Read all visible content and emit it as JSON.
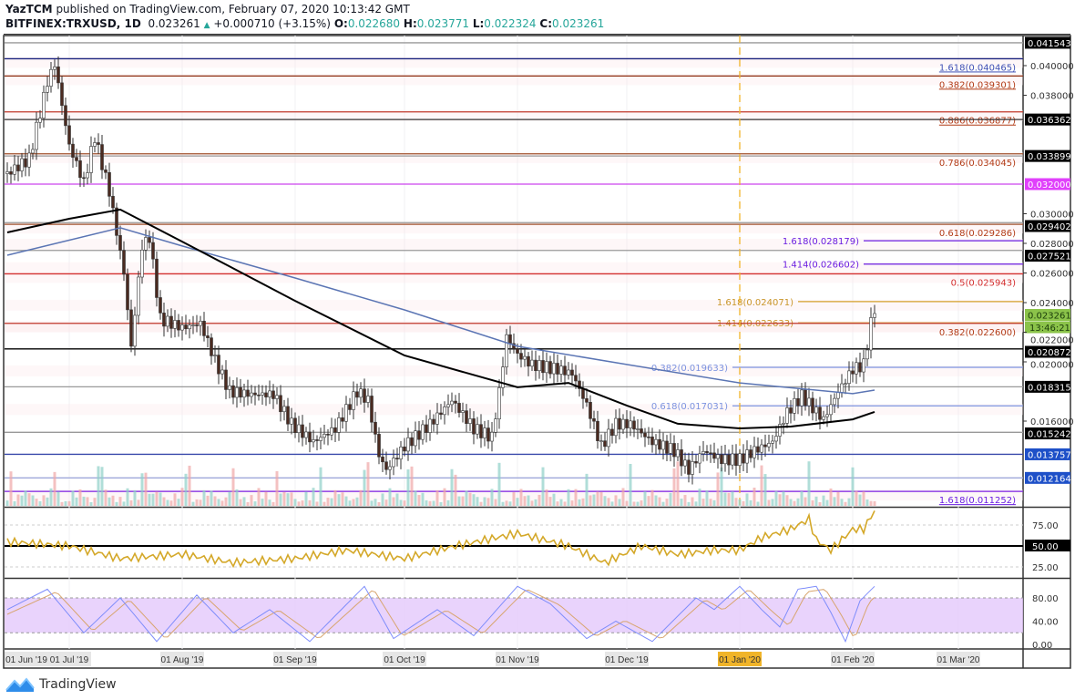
{
  "header": {
    "author": "YazTCM",
    "published": "published on TradingView.com, February 07, 2020 10:13:42 GMT",
    "symbol": "BITFINEX:TRXUSD, 1D",
    "last": "0.023261",
    "change": "+0.000710 (+3.15%)",
    "o_label": "O:",
    "o": "0.022680",
    "h_label": "H:",
    "h": "0.023771",
    "l_label": "L:",
    "l": "0.022324",
    "c_label": "C:",
    "c": "0.023261"
  },
  "footer": {
    "brand": "TradingView"
  },
  "chart_data": {
    "type": "candlestick",
    "colors": {
      "up": "#26a69a",
      "down": "#4a2a20",
      "rsi": "#d4a829",
      "stoch_k": "#7e8dfb",
      "stoch_d": "#d8a56e",
      "ma_black": "#000000",
      "ma_blue": "#5b75b4",
      "stoch_band": "#e3c8fb"
    },
    "price_axis_ticks": [
      "0.040000",
      "0.038000",
      "0.030000",
      "0.028000",
      "0.026000",
      "0.024000",
      "0.022000",
      "0.020000",
      "0.016000"
    ],
    "price_tags": [
      {
        "value": 0.041543,
        "text": "0.041543",
        "bg": "#000000"
      },
      {
        "value": 0.036362,
        "text": "0.036362",
        "bg": "#000000"
      },
      {
        "value": 0.033899,
        "text": "0.033899",
        "bg": "#000000"
      },
      {
        "value": 0.032,
        "text": "0.032000",
        "bg": "#e040fb"
      },
      {
        "value": 0.029402,
        "text": "0.029402",
        "bg": "#000000"
      },
      {
        "value": 0.027521,
        "text": "0.027521",
        "bg": "#000000"
      },
      {
        "value": 0.023261,
        "text": "0.023261",
        "bg": "#8bc34a"
      },
      {
        "value": 0.020872,
        "text": "0.020872",
        "bg": "#000000"
      },
      {
        "value": 0.018315,
        "text": "0.018315",
        "bg": "#000000"
      },
      {
        "value": 0.015242,
        "text": "0.015242",
        "bg": "#000000"
      },
      {
        "value": 0.013757,
        "text": "0.013757",
        "bg": "#1e50c8"
      },
      {
        "value": 0.012164,
        "text": "0.012164",
        "bg": "#1e50c8"
      }
    ],
    "countdown": "13:46:21",
    "levels": [
      {
        "value": 0.041543,
        "color": "#999999",
        "label": ""
      },
      {
        "value": 0.040465,
        "color": "#1a237e",
        "label": "1.618(0.040465)",
        "label_color": "#3f51b5"
      },
      {
        "value": 0.039301,
        "color": "#8b2e10",
        "label": "0.382(0.039301)",
        "label_color": "#b23c17"
      },
      {
        "value": 0.036877,
        "color": "#c0392b",
        "label": "0.886(0.036877)",
        "label_color": "#b23c17"
      },
      {
        "value": 0.036362,
        "color": "#333333",
        "label": ""
      },
      {
        "value": 0.034045,
        "color": "#a0522d",
        "label": "0.786(0.034045)",
        "label_color": "#b23c17"
      },
      {
        "value": 0.033899,
        "color": "#999999",
        "label": ""
      },
      {
        "value": 0.032,
        "color": "#cc44ee",
        "label": ""
      },
      {
        "value": 0.029402,
        "color": "#999999",
        "label": ""
      },
      {
        "value": 0.029286,
        "color": "#a0522d",
        "label": "0.618(0.029286)",
        "label_color": "#b23c17"
      },
      {
        "value": 0.028179,
        "color": "#6a1de0",
        "label": "1.618(0.028179)",
        "label_color": "#6a1de0",
        "start_date": "2020-02-04"
      },
      {
        "value": 0.027521,
        "color": "#999999",
        "label": ""
      },
      {
        "value": 0.026602,
        "color": "#6a1de0",
        "label": "1.414(0.026602)",
        "label_color": "#6a1de0",
        "start_date": "2020-02-04"
      },
      {
        "value": 0.025943,
        "color": "#d32f2f",
        "label": "0.5(0.025943)",
        "label_color": "#d32f2f"
      },
      {
        "value": 0.024071,
        "color": "#d4a02a",
        "label": "1.618(0.024071)",
        "label_color": "#c9962a",
        "start_date": "2020-01-17"
      },
      {
        "value": 0.022633,
        "color": "#d4a02a",
        "label": "1.414(0.022633)",
        "label_color": "#c9962a",
        "start_date": "2020-01-17"
      },
      {
        "value": 0.0226,
        "color": "#c0392b",
        "label": "0.382(0.022600)",
        "label_color": "#b23c17"
      },
      {
        "value": 0.020872,
        "color": "#000000",
        "label": ""
      },
      {
        "value": 0.019633,
        "color": "#7b93e0",
        "label": "0.382(0.019633)",
        "label_color": "#7b93e0",
        "start_date": "2019-12-30"
      },
      {
        "value": 0.018315,
        "color": "#999999",
        "label": ""
      },
      {
        "value": 0.017031,
        "color": "#7b93e0",
        "label": "0.618(0.017031)",
        "label_color": "#7b93e0",
        "start_date": "2019-12-30"
      },
      {
        "value": 0.015242,
        "color": "#999999",
        "label": ""
      },
      {
        "value": 0.013757,
        "color": "#3949ab",
        "label": ""
      },
      {
        "value": 0.012164,
        "color": "#9fa8da",
        "label": ""
      },
      {
        "value": 0.011252,
        "color": "#7b1fe0",
        "label": "1.618(0.011252)",
        "label_color": "#6a1de0"
      }
    ],
    "marker_date": "2020-01-01",
    "close": [
      [
        "2019-06-14",
        0.0327
      ],
      [
        "2019-06-20",
        0.0337
      ],
      [
        "2019-06-25",
        0.0389
      ],
      [
        "2019-06-27",
        0.0401
      ],
      [
        "2019-07-01",
        0.0346
      ],
      [
        "2019-07-05",
        0.0321
      ],
      [
        "2019-07-08",
        0.0352
      ],
      [
        "2019-07-12",
        0.0315
      ],
      [
        "2019-07-16",
        0.026
      ],
      [
        "2019-07-18",
        0.021
      ],
      [
        "2019-07-21",
        0.0278
      ],
      [
        "2019-07-23",
        0.0284
      ],
      [
        "2019-07-26",
        0.0229
      ],
      [
        "2019-08-01",
        0.0223
      ],
      [
        "2019-08-06",
        0.0226
      ],
      [
        "2019-08-10",
        0.0201
      ],
      [
        "2019-08-14",
        0.018
      ],
      [
        "2019-08-20",
        0.0178
      ],
      [
        "2019-08-26",
        0.0178
      ],
      [
        "2019-08-31",
        0.0158
      ],
      [
        "2019-09-06",
        0.0146
      ],
      [
        "2019-09-12",
        0.0155
      ],
      [
        "2019-09-18",
        0.018
      ],
      [
        "2019-09-21",
        0.0174
      ],
      [
        "2019-09-24",
        0.0137
      ],
      [
        "2019-09-26",
        0.0127
      ],
      [
        "2019-10-01",
        0.0143
      ],
      [
        "2019-10-08",
        0.0158
      ],
      [
        "2019-10-14",
        0.0174
      ],
      [
        "2019-10-20",
        0.0155
      ],
      [
        "2019-10-25",
        0.0149
      ],
      [
        "2019-10-27",
        0.018
      ],
      [
        "2019-10-29",
        0.0217
      ],
      [
        "2019-11-01",
        0.0205
      ],
      [
        "2019-11-05",
        0.0198
      ],
      [
        "2019-11-12",
        0.0195
      ],
      [
        "2019-11-16",
        0.0192
      ],
      [
        "2019-11-20",
        0.0171
      ],
      [
        "2019-11-24",
        0.0143
      ],
      [
        "2019-11-28",
        0.0158
      ],
      [
        "2019-12-02",
        0.0158
      ],
      [
        "2019-12-08",
        0.0146
      ],
      [
        "2019-12-14",
        0.014
      ],
      [
        "2019-12-18",
        0.0127
      ],
      [
        "2019-12-22",
        0.014
      ],
      [
        "2019-12-27",
        0.0134
      ],
      [
        "2020-01-01",
        0.0134
      ],
      [
        "2020-01-05",
        0.014
      ],
      [
        "2020-01-10",
        0.0146
      ],
      [
        "2020-01-14",
        0.0166
      ],
      [
        "2020-01-18",
        0.0177
      ],
      [
        "2020-01-24",
        0.0161
      ],
      [
        "2020-01-28",
        0.018
      ],
      [
        "2020-02-01",
        0.0195
      ],
      [
        "2020-02-04",
        0.0198
      ],
      [
        "2020-02-06",
        0.0226
      ],
      [
        "2020-02-07",
        0.023261
      ]
    ],
    "ma_black": [
      [
        "2019-06-14",
        0.02874
      ],
      [
        "2019-07-01",
        0.02966
      ],
      [
        "2019-07-15",
        0.03028
      ],
      [
        "2019-08-01",
        0.02812
      ],
      [
        "2019-09-01",
        0.02412
      ],
      [
        "2019-10-01",
        0.02043
      ],
      [
        "2019-11-01",
        0.01828
      ],
      [
        "2019-11-15",
        0.01858
      ],
      [
        "2019-12-01",
        0.01705
      ],
      [
        "2019-12-15",
        0.01582
      ],
      [
        "2020-01-01",
        0.01551
      ],
      [
        "2020-01-15",
        0.01563
      ],
      [
        "2020-02-01",
        0.01612
      ],
      [
        "2020-02-07",
        0.01662
      ]
    ],
    "ma_blue": [
      [
        "2019-06-14",
        0.0272
      ],
      [
        "2019-07-15",
        0.02905
      ],
      [
        "2019-08-01",
        0.02782
      ],
      [
        "2019-09-01",
        0.02566
      ],
      [
        "2019-10-01",
        0.02351
      ],
      [
        "2019-11-01",
        0.02105
      ],
      [
        "2019-12-01",
        0.01982
      ],
      [
        "2020-01-01",
        0.01858
      ],
      [
        "2020-02-01",
        0.01785
      ],
      [
        "2020-02-07",
        0.01809
      ]
    ],
    "rsi": {
      "ticks": [
        "75.00",
        "50.00",
        "25.00"
      ],
      "level": "50.00",
      "values": [
        [
          "2019-06-14",
          55
        ],
        [
          "2019-07-01",
          50
        ],
        [
          "2019-07-15",
          35
        ],
        [
          "2019-08-01",
          40
        ],
        [
          "2019-08-15",
          30
        ],
        [
          "2019-09-01",
          35
        ],
        [
          "2019-09-15",
          45
        ],
        [
          "2019-10-01",
          35
        ],
        [
          "2019-10-15",
          50
        ],
        [
          "2019-11-01",
          65
        ],
        [
          "2019-11-15",
          50
        ],
        [
          "2019-11-25",
          30
        ],
        [
          "2019-12-05",
          50
        ],
        [
          "2019-12-15",
          40
        ],
        [
          "2019-12-25",
          45
        ],
        [
          "2020-01-01",
          45
        ],
        [
          "2020-01-07",
          60
        ],
        [
          "2020-01-15",
          70
        ],
        [
          "2020-01-20",
          82
        ],
        [
          "2020-01-22",
          57
        ],
        [
          "2020-01-26",
          45
        ],
        [
          "2020-02-01",
          70
        ],
        [
          "2020-02-04",
          70
        ],
        [
          "2020-02-07",
          92
        ]
      ]
    },
    "stoch": {
      "ticks": [
        "80.00",
        "40.00",
        "0.00"
      ],
      "band": [
        20,
        80
      ],
      "k": [
        [
          "2019-06-14",
          60
        ],
        [
          "2019-06-25",
          95
        ],
        [
          "2019-07-05",
          20
        ],
        [
          "2019-07-15",
          80
        ],
        [
          "2019-07-25",
          5
        ],
        [
          "2019-08-05",
          85
        ],
        [
          "2019-08-15",
          20
        ],
        [
          "2019-08-25",
          60
        ],
        [
          "2019-09-05",
          5
        ],
        [
          "2019-09-20",
          100
        ],
        [
          "2019-09-28",
          10
        ],
        [
          "2019-10-10",
          60
        ],
        [
          "2019-10-20",
          15
        ],
        [
          "2019-11-01",
          100
        ],
        [
          "2019-11-10",
          70
        ],
        [
          "2019-11-20",
          10
        ],
        [
          "2019-11-28",
          40
        ],
        [
          "2019-12-08",
          5
        ],
        [
          "2019-12-20",
          80
        ],
        [
          "2019-12-25",
          60
        ],
        [
          "2020-01-01",
          100
        ],
        [
          "2020-01-07",
          60
        ],
        [
          "2020-01-12",
          30
        ],
        [
          "2020-01-17",
          95
        ],
        [
          "2020-01-22",
          100
        ],
        [
          "2020-01-26",
          55
        ],
        [
          "2020-01-30",
          5
        ],
        [
          "2020-02-03",
          75
        ],
        [
          "2020-02-07",
          100
        ]
      ]
    },
    "x_axis": [
      {
        "date": "2019-06-01",
        "label": "01 Jun '19"
      },
      {
        "date": "2019-07-01",
        "label": "01 Jul '19"
      },
      {
        "date": "2019-08-01",
        "label": "01 Aug '19"
      },
      {
        "date": "2019-09-01",
        "label": "01 Sep '19"
      },
      {
        "date": "2019-10-01",
        "label": "01 Oct '19"
      },
      {
        "date": "2019-11-01",
        "label": "01 Nov '19"
      },
      {
        "date": "2019-12-01",
        "label": "01 Dec '19"
      },
      {
        "date": "2020-01-01",
        "label": "01 Jan '20",
        "highlight": "#f0b429"
      },
      {
        "date": "2020-02-01",
        "label": "01 Feb '20"
      },
      {
        "date": "2020-03-01",
        "label": "01 Mar '20"
      }
    ]
  }
}
